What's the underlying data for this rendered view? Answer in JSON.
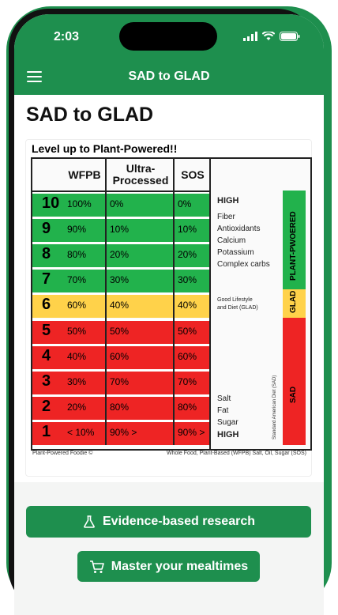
{
  "status": {
    "time": "2:03"
  },
  "app": {
    "title": "SAD to GLAD"
  },
  "page": {
    "title": "SAD to GLAD"
  },
  "figure": {
    "title": "Level up to Plant-Powered!!",
    "headers": {
      "wfpb": "WFPB",
      "ultra_line1": "Ultra-",
      "ultra_line2": "Processed",
      "sos": "SOS"
    },
    "rows": [
      {
        "level": "10",
        "wfpb": "100%",
        "ultra": "0%",
        "sos": "0%",
        "color": "#22b24c"
      },
      {
        "level": "9",
        "wfpb": "90%",
        "ultra": "10%",
        "sos": "10%",
        "color": "#22b24c"
      },
      {
        "level": "8",
        "wfpb": "80%",
        "ultra": "20%",
        "sos": "20%",
        "color": "#22b24c"
      },
      {
        "level": "7",
        "wfpb": "70%",
        "ultra": "30%",
        "sos": "30%",
        "color": "#22b24c"
      },
      {
        "level": "6",
        "wfpb": "60%",
        "ultra": "40%",
        "sos": "40%",
        "color": "#ffd24a"
      },
      {
        "level": "5",
        "wfpb": "50%",
        "ultra": "50%",
        "sos": "50%",
        "color": "#ee2424"
      },
      {
        "level": "4",
        "wfpb": "40%",
        "ultra": "60%",
        "sos": "60%",
        "color": "#ee2424"
      },
      {
        "level": "3",
        "wfpb": "30%",
        "ultra": "70%",
        "sos": "70%",
        "color": "#ee2424"
      },
      {
        "level": "2",
        "wfpb": "20%",
        "ultra": "80%",
        "sos": "80%",
        "color": "#ee2424"
      },
      {
        "level": "1",
        "wfpb": "< 10%",
        "ultra": "90% >",
        "sos": "90% >",
        "color": "#ee2424"
      }
    ],
    "side": {
      "high_top": "HIGH",
      "nutrients": [
        "Fiber",
        "Antioxidants",
        "Calcium",
        "Potassium",
        "Complex carbs"
      ],
      "glad_note_1": "Good Lifestyle",
      "glad_note_2": "and Diet (GLAD)",
      "sad_vertical": "Standard American Diet (SAD)",
      "bad_items": [
        "Salt",
        "Fat",
        "Sugar"
      ],
      "high_bottom": "HIGH"
    },
    "bars": {
      "plant": "PLANT-PWOERED",
      "glad": "GLAD",
      "sad": "SAD"
    },
    "footer_left": "Plant-Powered Foodie ©",
    "footer_right": "Whole Food, Plant-Based (WFPB) Salt, Oil, Sugar (SOS)"
  },
  "buttons": {
    "research": "Evidence-based research",
    "mealtimes": "Master your mealtimes"
  },
  "colors": {
    "brand": "#1e8f4e",
    "green": "#22b24c",
    "yellow": "#ffd24a",
    "red": "#ee2424"
  },
  "icons": {
    "menu": "hamburger-menu-icon",
    "research": "flask-icon",
    "mealtimes": "cart-icon"
  }
}
